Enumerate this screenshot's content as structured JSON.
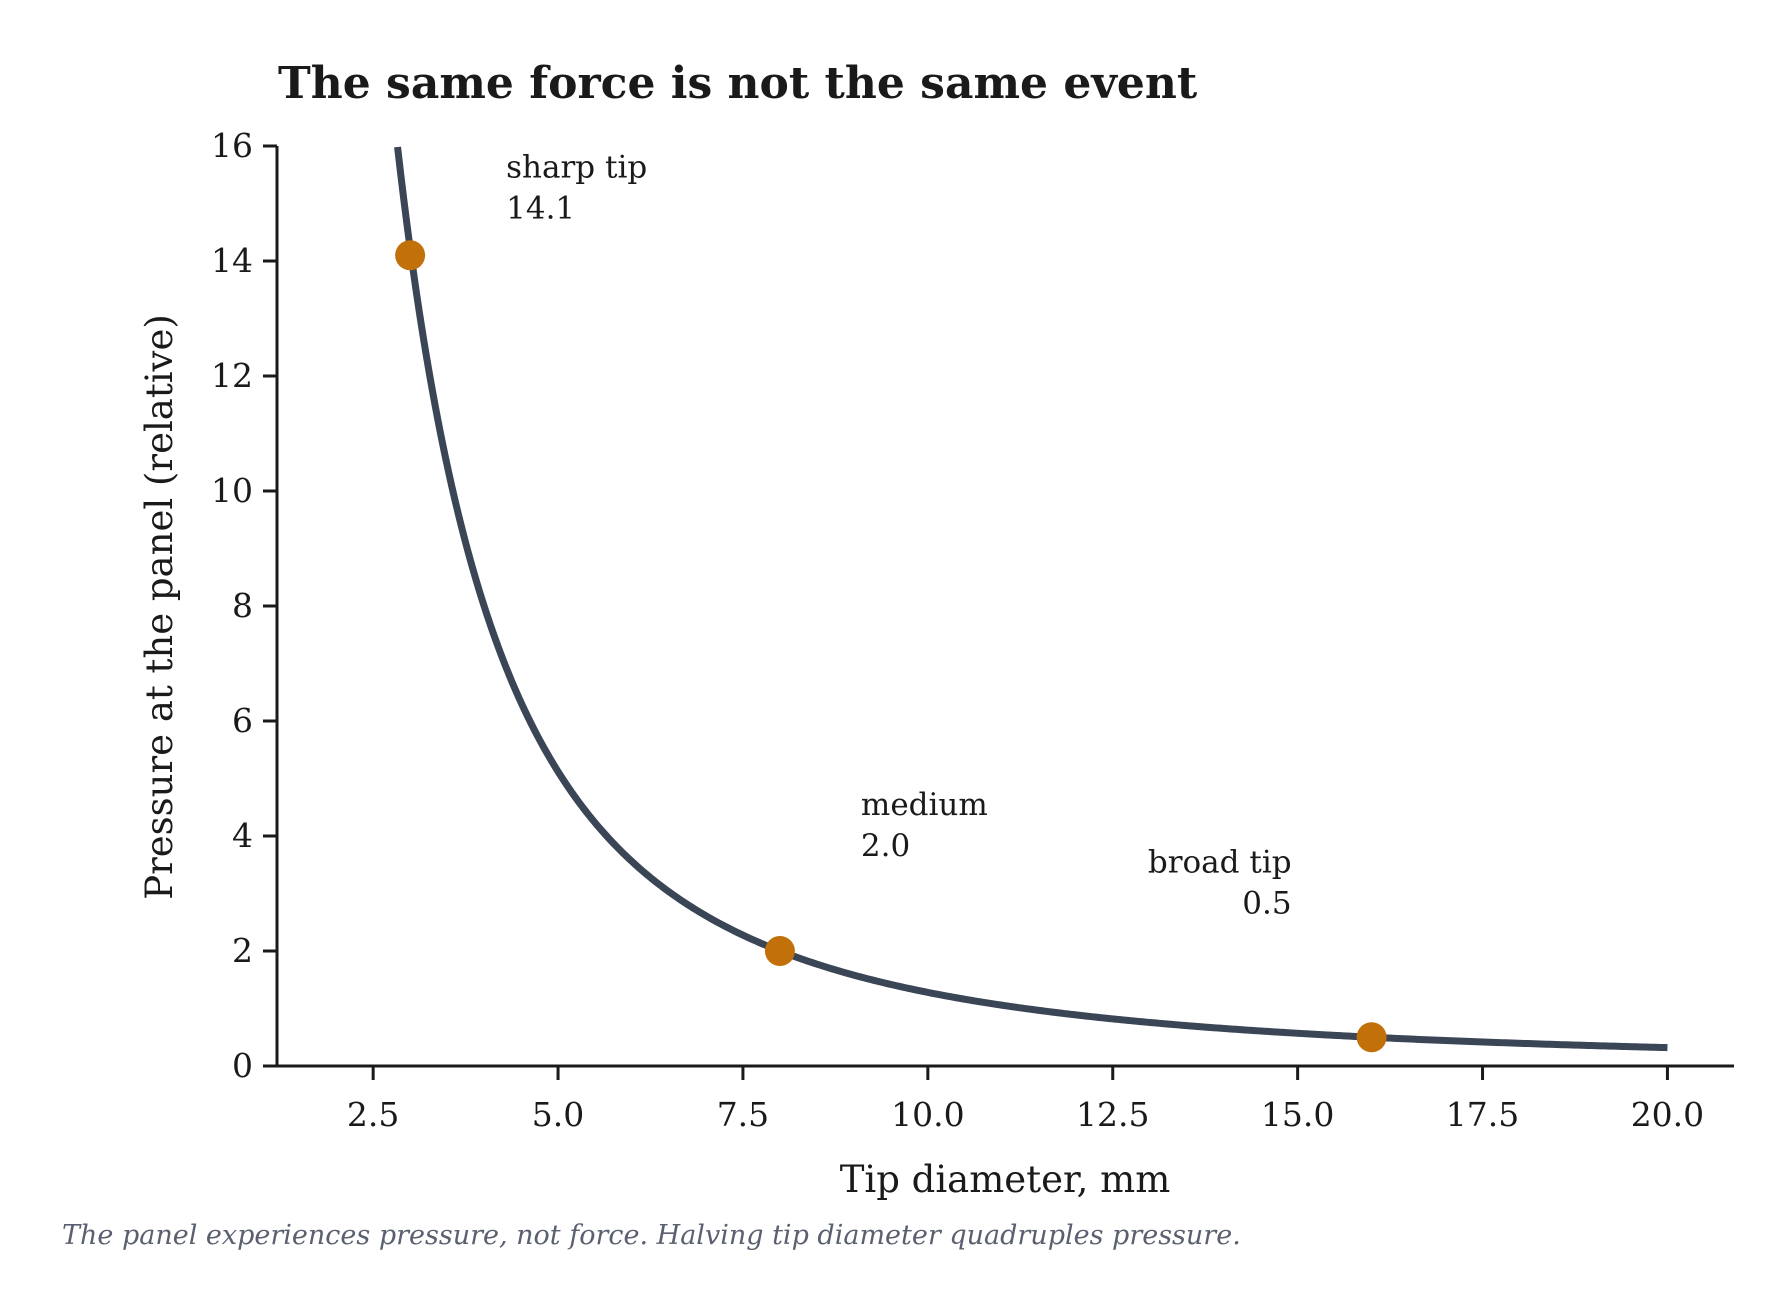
{
  "chart_data": {
    "type": "line",
    "title": "The same force is not the same event",
    "xlabel": "Tip diameter, mm",
    "ylabel": "Pressure at the panel (relative)",
    "caption": "The panel experiences pressure, not force. Halving tip diameter quadruples pressure.",
    "xlim": [
      1.2,
      20.9
    ],
    "ylim": [
      0,
      16
    ],
    "x_ticks": [
      2.5,
      5.0,
      7.5,
      10.0,
      12.5,
      15.0,
      17.5,
      20.0
    ],
    "x_tick_labels": [
      "2.5",
      "5.0",
      "7.5",
      "10.0",
      "12.5",
      "15.0",
      "17.5",
      "20.0"
    ],
    "y_ticks": [
      0,
      2,
      4,
      6,
      8,
      10,
      12,
      14,
      16
    ],
    "y_tick_labels": [
      "0",
      "2",
      "4",
      "6",
      "8",
      "10",
      "12",
      "14",
      "16"
    ],
    "grid": false,
    "legend": "none",
    "curve": {
      "formula": "pressure = 128 / diameter^2",
      "x_range": [
        2.83,
        20.0
      ],
      "color": "#3a4556"
    },
    "points": [
      {
        "x": 3.0,
        "y": 14.1,
        "label": "sharp tip",
        "value_label": "14.1"
      },
      {
        "x": 8.0,
        "y": 2.0,
        "label": "medium",
        "value_label": "2.0"
      },
      {
        "x": 16.0,
        "y": 0.5,
        "label": "broad tip",
        "value_label": "0.5"
      }
    ],
    "point_color": "#c2700a"
  }
}
